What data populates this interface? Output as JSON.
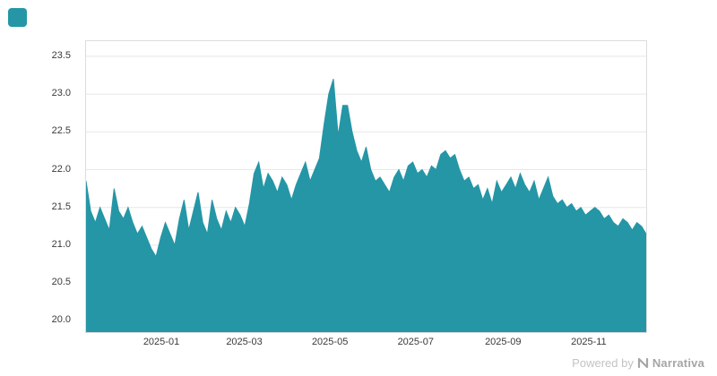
{
  "brand": {
    "logo_color": "#2596a6"
  },
  "watermark": {
    "powered_by": "Powered by",
    "brand": "Narrativa"
  },
  "chart_data": {
    "type": "area",
    "title": "",
    "xlabel": "",
    "ylabel": "",
    "series_color": "#2596a6",
    "grid": true,
    "legend": false,
    "x_range": [
      "2024-11-08",
      "2025-12-11"
    ],
    "ylim": [
      19.85,
      23.7
    ],
    "y_ticks": [
      20.0,
      20.5,
      21.0,
      21.5,
      22.0,
      22.5,
      23.0,
      23.5
    ],
    "x_ticks": [
      {
        "label": "2025-01",
        "f": 0.136
      },
      {
        "label": "2025-03",
        "f": 0.284
      },
      {
        "label": "2025-05",
        "f": 0.437
      },
      {
        "label": "2025-07",
        "f": 0.59
      },
      {
        "label": "2025-09",
        "f": 0.746
      },
      {
        "label": "2025-11",
        "f": 0.899
      }
    ],
    "values": [
      21.85,
      21.45,
      21.3,
      21.5,
      21.35,
      21.2,
      21.75,
      21.45,
      21.35,
      21.5,
      21.3,
      21.15,
      21.25,
      21.1,
      20.95,
      20.85,
      21.1,
      21.3,
      21.15,
      21.0,
      21.35,
      21.6,
      21.2,
      21.45,
      21.7,
      21.3,
      21.15,
      21.6,
      21.35,
      21.2,
      21.45,
      21.3,
      21.5,
      21.4,
      21.25,
      21.55,
      21.95,
      22.1,
      21.75,
      21.95,
      21.85,
      21.7,
      21.9,
      21.8,
      21.6,
      21.8,
      21.95,
      22.1,
      21.85,
      22.0,
      22.15,
      22.6,
      23.0,
      23.2,
      22.45,
      22.85,
      22.85,
      22.5,
      22.25,
      22.1,
      22.3,
      22.0,
      21.85,
      21.9,
      21.8,
      21.7,
      21.9,
      22.0,
      21.85,
      22.05,
      22.1,
      21.95,
      22.0,
      21.9,
      22.05,
      22.0,
      22.2,
      22.25,
      22.15,
      22.2,
      22.0,
      21.85,
      21.9,
      21.75,
      21.8,
      21.6,
      21.75,
      21.55,
      21.85,
      21.7,
      21.8,
      21.9,
      21.75,
      21.95,
      21.8,
      21.7,
      21.85,
      21.6,
      21.75,
      21.9,
      21.65,
      21.55,
      21.6,
      21.5,
      21.55,
      21.45,
      21.5,
      21.4,
      21.45,
      21.5,
      21.45,
      21.35,
      21.4,
      21.3,
      21.25,
      21.35,
      21.3,
      21.2,
      21.3,
      21.25,
      21.15
    ]
  }
}
